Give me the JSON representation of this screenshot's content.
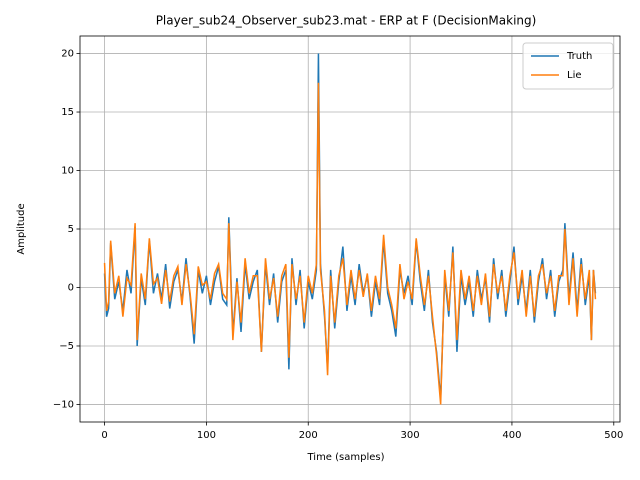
{
  "chart_data": {
    "type": "line",
    "title": "Player_sub24_Observer_sub23.mat - ERP at F (DecisionMaking)",
    "x_label": "Time (samples)",
    "y_label": "Amplitude",
    "x": [
      0,
      2,
      4,
      6,
      10,
      14,
      18,
      22,
      26,
      30,
      32,
      36,
      40,
      44,
      48,
      52,
      56,
      60,
      64,
      68,
      72,
      76,
      80,
      84,
      88,
      92,
      96,
      100,
      104,
      108,
      112,
      116,
      120,
      122,
      126,
      130,
      134,
      138,
      142,
      146,
      150,
      154,
      158,
      162,
      166,
      170,
      174,
      178,
      181,
      184,
      188,
      192,
      196,
      200,
      204,
      208,
      210,
      212,
      216,
      219,
      222,
      226,
      230,
      234,
      238,
      242,
      246,
      250,
      254,
      258,
      262,
      266,
      270,
      274,
      278,
      282,
      286,
      290,
      294,
      298,
      302,
      306,
      310,
      314,
      318,
      322,
      326,
      330,
      334,
      338,
      342,
      346,
      350,
      354,
      358,
      362,
      366,
      370,
      374,
      378,
      382,
      386,
      390,
      394,
      398,
      402,
      406,
      410,
      414,
      418,
      422,
      426,
      430,
      434,
      438,
      442,
      446,
      450,
      452,
      456,
      460,
      464,
      468,
      472,
      476,
      478,
      480,
      482
    ],
    "series": [
      {
        "name": "Truth",
        "color": "#1f77b4",
        "values": [
          1.2,
          -2.5,
          -1.8,
          3.8,
          -1.0,
          0.5,
          -2.0,
          1.5,
          -0.5,
          5.2,
          -5.0,
          0.8,
          -1.5,
          4.0,
          -0.5,
          1.2,
          -1.0,
          2.0,
          -1.8,
          0.5,
          1.5,
          -1.2,
          2.5,
          -0.8,
          -4.8,
          1.5,
          -0.5,
          1.0,
          -1.5,
          0.5,
          1.8,
          -1.0,
          -1.5,
          6.0,
          -4.0,
          0.8,
          -3.8,
          2.0,
          -1.0,
          0.5,
          1.5,
          -5.5,
          2.0,
          -1.5,
          1.2,
          -3.0,
          0.5,
          1.5,
          -7.0,
          2.5,
          -1.5,
          1.5,
          -3.5,
          0.5,
          -1.0,
          1.5,
          20.0,
          2.0,
          -2.5,
          -7.0,
          1.5,
          -3.5,
          0.5,
          3.5,
          -2.0,
          1.0,
          -1.5,
          2.0,
          -0.5,
          1.0,
          -2.5,
          0.5,
          -1.5,
          4.0,
          -0.5,
          -2.0,
          -4.2,
          1.5,
          -0.5,
          1.0,
          -1.5,
          4.0,
          0.5,
          -2.0,
          1.5,
          -3.0,
          -5.5,
          -9.5,
          1.0,
          -2.5,
          3.5,
          -5.5,
          1.0,
          -1.5,
          0.5,
          -2.5,
          1.5,
          -1.0,
          0.8,
          -3.0,
          2.5,
          -1.0,
          1.5,
          -2.5,
          0.5,
          3.5,
          -1.5,
          1.0,
          -2.0,
          1.5,
          -3.0,
          0.5,
          2.5,
          -1.0,
          1.5,
          -2.5,
          0.5,
          1.5,
          5.5,
          -1.0,
          3.0,
          -2.0,
          2.5,
          -1.5,
          1.0,
          -4.5,
          1.5,
          -0.5
        ]
      },
      {
        "name": "Lie",
        "color": "#ff7f0e",
        "values": [
          2.1,
          -2.0,
          -1.2,
          4.0,
          -0.5,
          1.0,
          -2.5,
          0.8,
          0.2,
          5.5,
          -4.5,
          1.2,
          -1.0,
          4.2,
          0.3,
          0.8,
          -1.4,
          1.5,
          -1.2,
          1.0,
          1.8,
          -1.5,
          2.0,
          -0.5,
          -4.0,
          1.8,
          0.2,
          0.5,
          -1.0,
          1.2,
          2.0,
          -0.5,
          -1.0,
          5.5,
          -4.5,
          0.5,
          -3.0,
          2.5,
          -0.5,
          1.0,
          1.0,
          -5.5,
          2.5,
          -1.0,
          0.8,
          -2.5,
          1.0,
          2.0,
          -6.0,
          2.0,
          -1.0,
          1.0,
          -3.0,
          1.0,
          -0.5,
          2.0,
          17.5,
          1.5,
          -2.0,
          -7.5,
          1.0,
          -3.0,
          1.0,
          2.5,
          -1.5,
          1.5,
          -1.0,
          1.5,
          -0.8,
          1.2,
          -2.0,
          1.0,
          -1.0,
          4.5,
          0.0,
          -1.5,
          -3.5,
          2.0,
          -1.0,
          0.5,
          -1.0,
          4.2,
          1.0,
          -1.5,
          1.0,
          -2.5,
          -5.8,
          -10.0,
          1.5,
          -2.0,
          3.0,
          -4.5,
          1.5,
          -1.0,
          1.0,
          -2.0,
          1.0,
          -1.5,
          1.2,
          -2.5,
          2.0,
          -0.5,
          1.0,
          -2.0,
          1.0,
          3.0,
          -1.0,
          1.5,
          -2.5,
          1.0,
          -2.5,
          1.0,
          2.0,
          -0.5,
          1.0,
          -2.0,
          1.0,
          1.0,
          5.0,
          -1.5,
          2.5,
          -2.5,
          2.0,
          -1.0,
          1.5,
          -4.5,
          1.5,
          -1.0
        ]
      }
    ],
    "xlim": [
      -24.1,
      506.1
    ],
    "ylim": [
      -11.5,
      21.5
    ],
    "xticks": [
      0,
      100,
      200,
      300,
      400,
      500
    ],
    "yticks": [
      {
        "value": -10,
        "label": "−10"
      },
      {
        "value": -5,
        "label": "−5"
      },
      0,
      5,
      10,
      15,
      20
    ],
    "grid": true,
    "legend": "upper right"
  }
}
